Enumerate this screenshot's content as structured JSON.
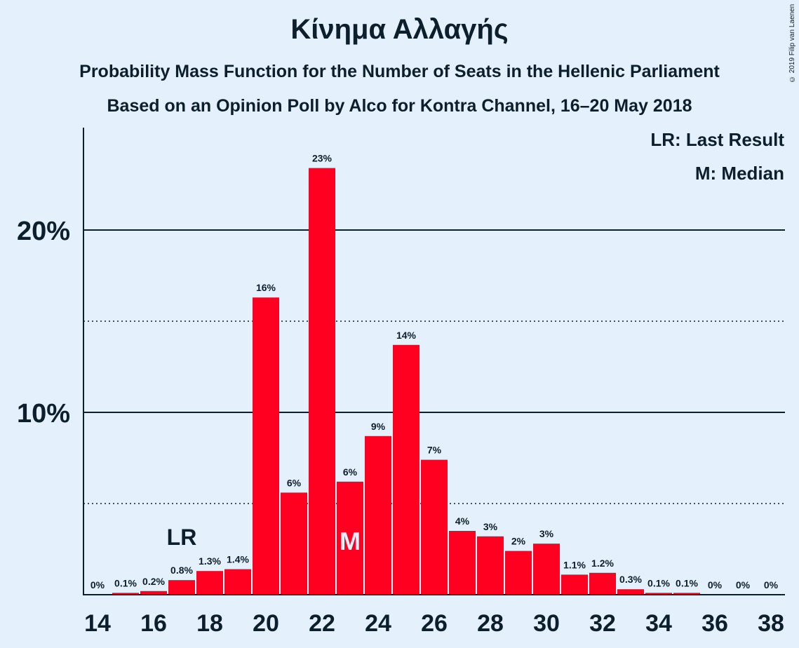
{
  "title": "Κίνημα Αλλαγής",
  "subtitle": "Probability Mass Function for the Number of Seats in the Hellenic Parliament",
  "subtitle2": "Based on an Opinion Poll by Alco for Kontra Channel, 16–20 May 2018",
  "copyright": "© 2019 Filip van Laenen",
  "legend": {
    "last_result": "LR: Last Result",
    "median": "M: Median"
  },
  "chart_data": {
    "type": "bar",
    "x": [
      14,
      15,
      16,
      17,
      18,
      19,
      20,
      21,
      22,
      23,
      24,
      25,
      26,
      27,
      28,
      29,
      30,
      31,
      32,
      33,
      34,
      35,
      36,
      37,
      38
    ],
    "values": [
      0,
      0.1,
      0.2,
      0.8,
      1.3,
      1.4,
      16.3,
      5.6,
      23.4,
      6.2,
      8.7,
      13.7,
      7.4,
      3.5,
      3.2,
      2.4,
      2.8,
      1.1,
      1.2,
      0.3,
      0.1,
      0.1,
      0,
      0,
      0
    ],
    "data_labels": [
      "0%",
      "0.1%",
      "0.2%",
      "0.8%",
      "1.3%",
      "1.4%",
      "16%",
      "6%",
      "23%",
      "6%",
      "9%",
      "14%",
      "7%",
      "4%",
      "3%",
      "2%",
      "3%",
      "1.1%",
      "1.2%",
      "0.3%",
      "0.1%",
      "0.1%",
      "0%",
      "0%",
      "0%"
    ],
    "x_tick_labels": [
      "14",
      "16",
      "18",
      "20",
      "22",
      "24",
      "26",
      "28",
      "30",
      "32",
      "34",
      "36",
      "38"
    ],
    "x_ticks": [
      14,
      16,
      18,
      20,
      22,
      24,
      26,
      28,
      30,
      32,
      34,
      36,
      38
    ],
    "y_ticks": [
      10,
      20
    ],
    "y_tick_labels": [
      "10%",
      "20%"
    ],
    "y_minor_gridlines": [
      5,
      15
    ],
    "ylim": [
      0,
      25.5
    ],
    "last_result": {
      "x": 17,
      "label": "LR"
    },
    "median": {
      "x": 23,
      "label": "M"
    },
    "bar_color": "#ff0021",
    "background": "#e4f0fb",
    "legend_placement": "top-right"
  }
}
